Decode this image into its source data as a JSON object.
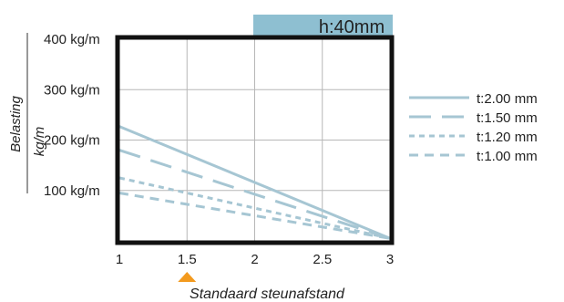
{
  "chart_data": {
    "type": "line",
    "height_badge": "h:40mm",
    "ylabel": "Belasting",
    "yunit": "kg/m",
    "xlabel": "Standaard steunafstand",
    "standard_span": 1.5,
    "xlim": [
      1,
      3
    ],
    "ylim": [
      0,
      400
    ],
    "xticks": [
      1,
      1.5,
      2,
      2.5,
      3
    ],
    "xtick_labels": [
      "1",
      "1.5",
      "2",
      "2.5",
      "3"
    ],
    "yticks": [
      100,
      200,
      300,
      400
    ],
    "ytick_labels": [
      "100 kg/m",
      "200 kg/m",
      "300 kg/m",
      "400 kg/m"
    ],
    "grid": true,
    "legend_position": "right",
    "colors": {
      "series": "#a6c6d3",
      "badge": "#8ebfd1",
      "marker": "#f39a1e",
      "frame": "#111111",
      "grid": "#b7b7b7"
    },
    "series": [
      {
        "name": "t:2.00  mm",
        "dash": "solid",
        "x": [
          1,
          3
        ],
        "y": [
          227,
          5
        ]
      },
      {
        "name": "t:1.50  mm",
        "dash": "long",
        "x": [
          1,
          3
        ],
        "y": [
          180,
          5
        ]
      },
      {
        "name": "t:1.20  mm",
        "dash": "short",
        "x": [
          1,
          3
        ],
        "y": [
          125,
          5
        ]
      },
      {
        "name": "t:1.00 mm",
        "dash": "medium",
        "x": [
          1,
          3
        ],
        "y": [
          95,
          5
        ]
      }
    ]
  }
}
